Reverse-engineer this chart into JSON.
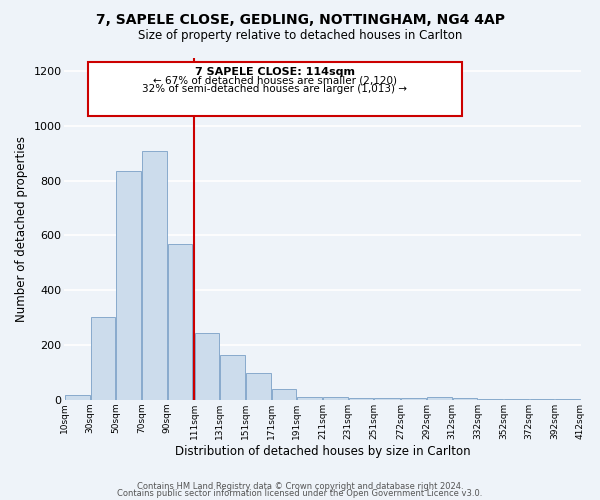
{
  "title": "7, SAPELE CLOSE, GEDLING, NOTTINGHAM, NG4 4AP",
  "subtitle": "Size of property relative to detached houses in Carlton",
  "xlabel": "Distribution of detached houses by size in Carlton",
  "ylabel": "Number of detached properties",
  "bar_color": "#ccdcec",
  "bar_edge_color": "#88aacc",
  "bar_left_edges": [
    10,
    30,
    50,
    70,
    90,
    111,
    131,
    151,
    171,
    191,
    211,
    231,
    251,
    272,
    292,
    312,
    332,
    352,
    372,
    392
  ],
  "bar_widths": [
    20,
    20,
    20,
    20,
    20,
    20,
    20,
    20,
    20,
    20,
    20,
    20,
    21,
    20,
    20,
    20,
    20,
    20,
    20,
    20
  ],
  "bar_heights": [
    18,
    303,
    835,
    910,
    568,
    243,
    163,
    98,
    38,
    12,
    12,
    8,
    8,
    8,
    12,
    8,
    4,
    4,
    4,
    4
  ],
  "tick_labels": [
    "10sqm",
    "30sqm",
    "50sqm",
    "70sqm",
    "90sqm",
    "111sqm",
    "131sqm",
    "151sqm",
    "171sqm",
    "191sqm",
    "211sqm",
    "231sqm",
    "251sqm",
    "272sqm",
    "292sqm",
    "312sqm",
    "332sqm",
    "352sqm",
    "372sqm",
    "392sqm",
    "412sqm"
  ],
  "tick_positions": [
    10,
    30,
    50,
    70,
    90,
    111,
    131,
    151,
    171,
    191,
    211,
    231,
    251,
    272,
    292,
    312,
    332,
    352,
    372,
    392,
    412
  ],
  "vline_x": 111,
  "vline_color": "#cc0000",
  "annotation_line1": "7 SAPELE CLOSE: 114sqm",
  "annotation_line2": "← 67% of detached houses are smaller (2,120)",
  "annotation_line3": "32% of semi-detached houses are larger (1,013) →",
  "ylim": [
    0,
    1250
  ],
  "xlim": [
    10,
    412
  ],
  "footer1": "Contains HM Land Registry data © Crown copyright and database right 2024.",
  "footer2": "Contains public sector information licensed under the Open Government Licence v3.0.",
  "background_color": "#eef3f9",
  "plot_bg_color": "#eef3f9",
  "grid_color": "#ffffff"
}
